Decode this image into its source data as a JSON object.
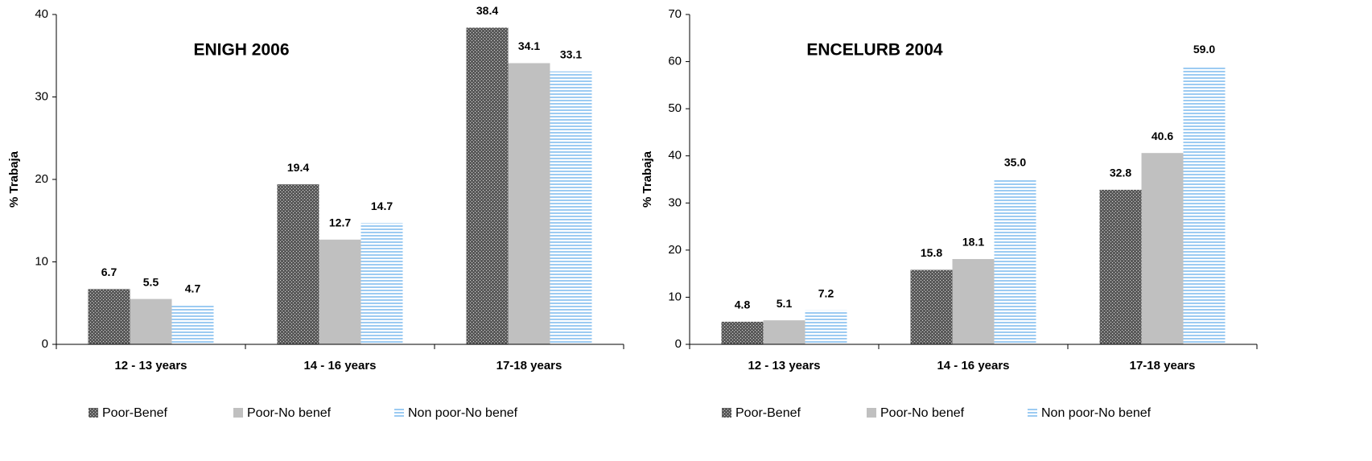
{
  "chart_data": [
    {
      "type": "bar",
      "title": "ENIGH 2006",
      "y_label": "% Trabaja",
      "categories": [
        "12 - 13 years",
        "14 - 16 years",
        "17-18 years"
      ],
      "series": [
        {
          "name": "Poor-Benef",
          "color": "#5a5a5a",
          "pattern": "crosshatch",
          "values": [
            6.7,
            19.4,
            38.4
          ],
          "value_labels": [
            "6.7",
            "19.4",
            "38.4"
          ]
        },
        {
          "name": "Poor-No benef",
          "color": "#c0c0c0",
          "pattern": "solid",
          "values": [
            5.5,
            12.7,
            34.1
          ],
          "value_labels": [
            "5.5",
            "12.7",
            "34.1"
          ]
        },
        {
          "name": "Non poor-No benef",
          "color": "#9ccbf2",
          "pattern": "stripes",
          "values": [
            4.7,
            14.7,
            33.1
          ],
          "value_labels": [
            "4.7",
            "14.7",
            "33.1"
          ]
        }
      ],
      "ylim": [
        0,
        40
      ],
      "yticks": [
        0,
        10,
        20,
        30,
        40
      ],
      "legend": "bottom"
    },
    {
      "type": "bar",
      "title": "ENCELURB 2004",
      "y_label": "% Trabaja",
      "categories": [
        "12 - 13 years",
        "14 - 16 years",
        "17-18 years"
      ],
      "series": [
        {
          "name": "Poor-Benef",
          "color": "#5a5a5a",
          "pattern": "crosshatch",
          "values": [
            4.8,
            15.8,
            32.8
          ],
          "value_labels": [
            "4.8",
            "15.8",
            "32.8"
          ]
        },
        {
          "name": "Poor-No benef",
          "color": "#c0c0c0",
          "pattern": "solid",
          "values": [
            5.1,
            18.1,
            40.6
          ],
          "value_labels": [
            "5.1",
            "18.1",
            "40.6"
          ]
        },
        {
          "name": "Non poor-No benef",
          "color": "#9ccbf2",
          "pattern": "stripes",
          "values": [
            7.2,
            35.0,
            59.0
          ],
          "value_labels": [
            "7.2",
            "35.0",
            "59.0"
          ]
        }
      ],
      "ylim": [
        0,
        70
      ],
      "yticks": [
        0,
        10,
        20,
        30,
        40,
        50,
        60,
        70
      ],
      "legend": "bottom"
    }
  ]
}
